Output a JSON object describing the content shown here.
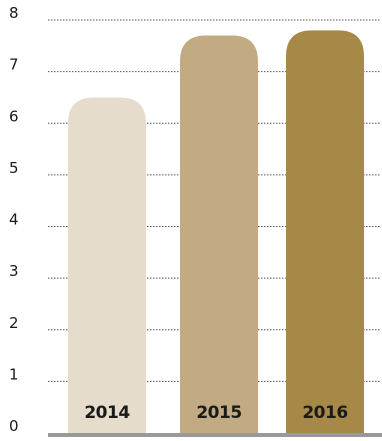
{
  "chart_data": {
    "type": "bar",
    "categories": [
      "2014",
      "2015",
      "2016"
    ],
    "values": [
      6.5,
      7.7,
      7.8
    ],
    "ylim": [
      0,
      8
    ],
    "yticks": [
      0,
      1,
      2,
      3,
      4,
      5,
      6,
      7,
      8
    ],
    "grid": true,
    "legend": "none",
    "colors": [
      "#e5dccb",
      "#c2ab82",
      "#a78947"
    ],
    "baseline_color": "#999999"
  }
}
